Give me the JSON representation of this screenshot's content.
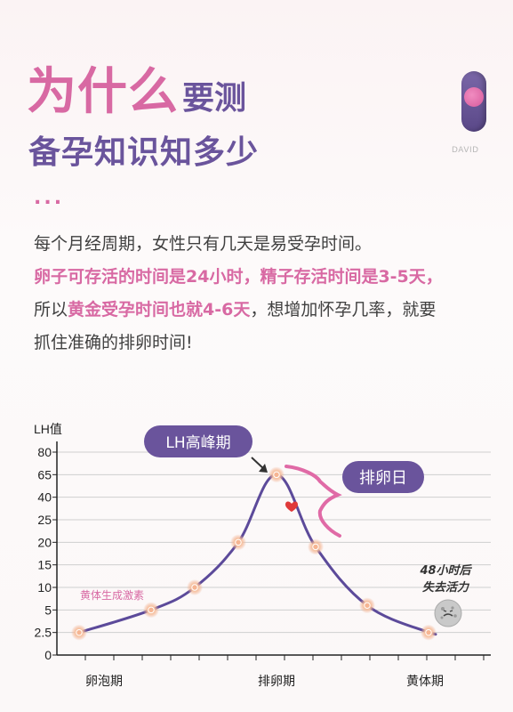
{
  "title": {
    "line1_big": "为什么",
    "line1_small": "要测",
    "line2": "备孕知识知多少",
    "dots": "..."
  },
  "device_label": "DAVID",
  "paragraph": {
    "line1": "每个月经周期，女性只有几天是易受孕时间。",
    "line2": "卵子可存活的时间是24小时，精子存活时间是3-5天，",
    "line3_pre": "所以",
    "line3_highlight": "黄金受孕时间也就4-6天",
    "line3_post": "，想增加怀孕几率，就要",
    "line4": "抓住准确的排卵时间!"
  },
  "colors": {
    "pink": "#d869a3",
    "purple": "#6a549c",
    "curve": "#5c4a9a",
    "marker": "#f0a98a",
    "heart": "#e03a3a"
  },
  "chart_data": {
    "type": "line",
    "ylabel": "LH值",
    "y_ticks": [
      "80",
      "65",
      "40",
      "25",
      "20",
      "15",
      "10",
      "5",
      "2.5",
      "0"
    ],
    "x_ticks": [
      "卵泡期",
      "排卵期",
      "黄体期"
    ],
    "series": [
      {
        "values": [
          {
            "x": 1,
            "y": 2.5
          },
          {
            "x": 2,
            "y": 5
          },
          {
            "x": 3,
            "y": 10
          },
          {
            "x": 4,
            "y": 20
          },
          {
            "x": 5,
            "y": 65
          },
          {
            "x": 6,
            "y": 19
          },
          {
            "x": 7,
            "y": 6
          },
          {
            "x": 8,
            "y": 2.5
          }
        ]
      }
    ],
    "annotations": {
      "peak_label": "LH高峰期",
      "ovulation_label": "排卵日",
      "luteal_label": "黄体生成激素",
      "egg_note_line1": "48小时后",
      "egg_note_line2": "失去活力"
    },
    "grid": true
  }
}
